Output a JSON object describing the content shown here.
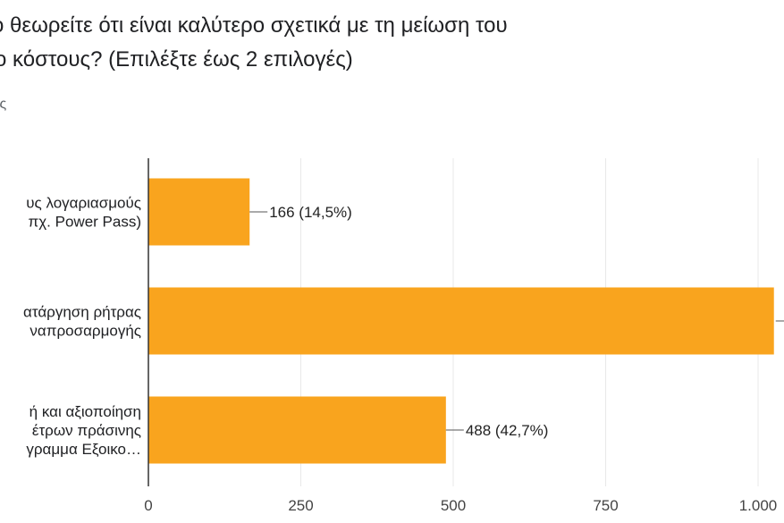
{
  "question": {
    "line1": "ο θεωρείτε ότι είναι καλύτερο σχετικά με τη μείωση του",
    "line2": "ο κόστους? (Επιλέξτε έως 2 επιλογές)",
    "responses": "ις"
  },
  "colors": {
    "bar": "#F9A41E",
    "grid": "#e8e8e8",
    "axis": "#333333"
  },
  "chart_data": {
    "type": "bar",
    "orientation": "horizontal",
    "categories": [
      [
        "υς λογαριασμούς",
        "πχ. Power Pass)"
      ],
      [
        "ατάργηση ρήτρας",
        "ναπροσαρμογής"
      ],
      [
        "ή και αξιοποίηση",
        "έτρων πράσινης",
        "γραμμα Εξοικο…"
      ]
    ],
    "values": [
      166,
      1026,
      488
    ],
    "data_labels": [
      "166 (14,5%)",
      "",
      "488 (42,7%)"
    ],
    "xlim": [
      0,
      1000
    ],
    "xticks": [
      0,
      250,
      500,
      750,
      1000
    ],
    "xtick_labels": [
      "0",
      "250",
      "500",
      "750",
      "1.000"
    ],
    "grid": true,
    "xlabel": "",
    "ylabel": ""
  }
}
